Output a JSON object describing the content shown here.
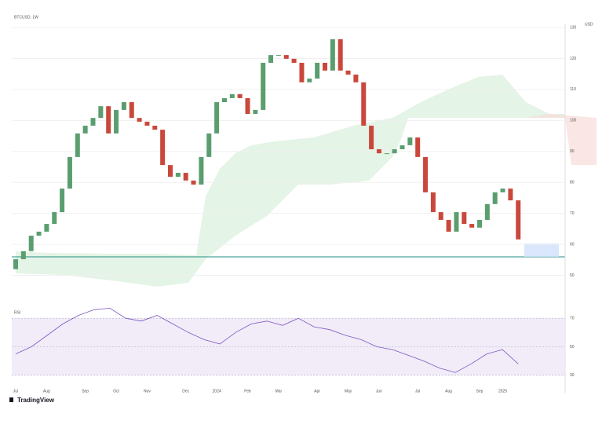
{
  "header": {
    "title": "BTCUSD, 1W",
    "logo": "TradingView",
    "currency": "USD"
  },
  "chart_data": {
    "type": "candlestick",
    "categories": [
      "Jul",
      null,
      null,
      null,
      "Aug",
      null,
      null,
      null,
      null,
      "Sep",
      null,
      null,
      null,
      "Oct",
      null,
      null,
      null,
      "Nov",
      null,
      null,
      null,
      null,
      "Dec",
      null,
      null,
      null,
      "2024",
      null,
      null,
      null,
      "Feb",
      null,
      null,
      null,
      "Mar",
      null,
      null,
      null,
      null,
      "Apr",
      null,
      null,
      null,
      "May",
      null,
      null,
      null,
      "Jun",
      null,
      null,
      null,
      null,
      "Jul",
      null,
      null,
      null,
      "Aug",
      null,
      null,
      null,
      "Sep",
      null,
      null,
      "2025",
      null,
      null
    ],
    "open": [
      52,
      55.2,
      57.8,
      62.8,
      64.1,
      66.6,
      70.4,
      78.0,
      88.2,
      95.8,
      98.3,
      100.8,
      104.6,
      95.8,
      103.4,
      105.9,
      100.8,
      99.6,
      98.3,
      97.0,
      85.6,
      81.8,
      83.1,
      80.6,
      79.3,
      88.2,
      95.8,
      105.9,
      107.2,
      108.5,
      107.2,
      102.1,
      103.4,
      118.6,
      121.1,
      121.1,
      119.9,
      118.6,
      112.3,
      113.5,
      118.6,
      116.1,
      126.2,
      116.1,
      114.8,
      112.3,
      98.3,
      90.7,
      89.4,
      89.4,
      90.7,
      92.0,
      94.5,
      88.2,
      76.8,
      70.4,
      67.9,
      64.1,
      70.4,
      66.6,
      65.4,
      67.9,
      73.0,
      76.8,
      78.0,
      74.2
    ],
    "close": [
      55.2,
      57.8,
      62.8,
      64.1,
      66.6,
      70.4,
      78.0,
      88.2,
      95.8,
      98.3,
      100.8,
      104.6,
      95.8,
      103.4,
      105.9,
      100.8,
      99.6,
      98.3,
      97.0,
      85.6,
      81.8,
      83.1,
      80.6,
      79.3,
      88.2,
      95.8,
      105.9,
      107.2,
      108.5,
      107.2,
      102.1,
      103.4,
      118.6,
      121.1,
      121.1,
      119.9,
      118.6,
      112.3,
      113.5,
      118.6,
      116.1,
      126.2,
      116.1,
      114.8,
      112.3,
      98.3,
      90.7,
      89.4,
      89.4,
      90.7,
      92.0,
      94.5,
      88.2,
      76.8,
      70.4,
      67.9,
      64.1,
      70.4,
      66.6,
      65.4,
      67.9,
      73.0,
      76.8,
      78.0,
      74.2,
      61.6
    ],
    "up_color": "#5a9e6f",
    "down_color": "#c9483b",
    "ylim": [
      40,
      130
    ],
    "yticks": [
      50,
      60,
      70,
      80,
      90,
      100,
      110,
      120,
      130
    ],
    "grid": true,
    "rsi": {
      "name": "RSI",
      "color": "#7e57c2",
      "ylim": [
        20,
        80
      ],
      "yticks": [
        30,
        50,
        70
      ],
      "values": [
        45,
        50,
        58,
        66,
        72,
        76,
        77,
        70,
        68,
        72,
        66,
        60,
        55,
        52,
        60,
        66,
        68,
        65,
        70,
        64,
        62,
        58,
        55,
        50,
        48,
        44,
        40,
        35,
        32,
        38,
        45,
        48,
        38
      ]
    }
  }
}
